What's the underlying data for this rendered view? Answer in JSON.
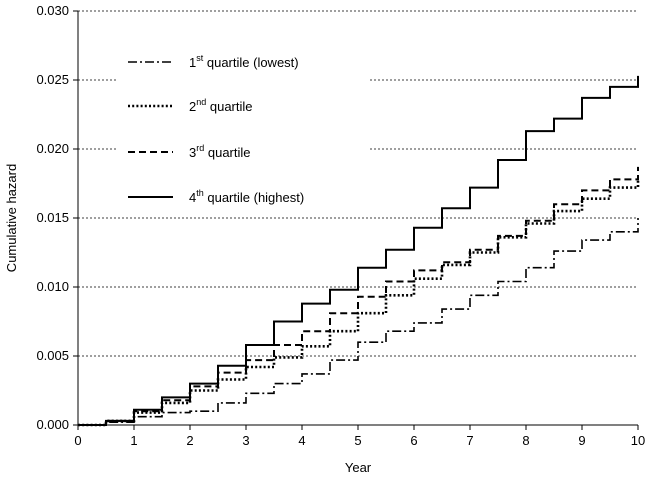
{
  "chart_data": {
    "type": "line",
    "title": "",
    "xlabel": "Year",
    "ylabel": "Cumulative hazard",
    "xlim": [
      0,
      10
    ],
    "ylim": [
      0,
      0.03
    ],
    "x_ticks": [
      "0",
      "1",
      "2",
      "3",
      "4",
      "5",
      "6",
      "7",
      "8",
      "9",
      "10"
    ],
    "y_ticks": [
      "0.000",
      "0.005",
      "0.010",
      "0.015",
      "0.020",
      "0.025",
      "0.030"
    ],
    "grid": "horizontal dashed",
    "legend_position": "top-left",
    "series": [
      {
        "name": "1st quartile (lowest)",
        "ordinal_num": "1",
        "ordinal_suffix": "st",
        "rest": " quartile (lowest)",
        "style": "dash-dot",
        "x": [
          0,
          0.5,
          1.0,
          1.5,
          2.0,
          2.5,
          3.0,
          3.5,
          4.0,
          4.5,
          5.0,
          5.5,
          6.0,
          6.5,
          7.0,
          7.5,
          8.0,
          8.5,
          9.0,
          9.5,
          10.0
        ],
        "y": [
          0,
          0.0002,
          0.0006,
          0.0009,
          0.001,
          0.0016,
          0.0023,
          0.003,
          0.0037,
          0.0047,
          0.006,
          0.0068,
          0.0074,
          0.0084,
          0.0094,
          0.0104,
          0.0114,
          0.0126,
          0.0134,
          0.014,
          0.015
        ]
      },
      {
        "name": "2nd quartile",
        "ordinal_num": "2",
        "ordinal_suffix": "nd",
        "rest": " quartile",
        "style": "dotted",
        "x": [
          0,
          0.5,
          1.0,
          1.5,
          2.0,
          2.5,
          3.0,
          3.5,
          4.0,
          4.5,
          5.0,
          5.5,
          6.0,
          6.5,
          7.0,
          7.5,
          8.0,
          8.5,
          9.0,
          9.5,
          10.0
        ],
        "y": [
          0,
          0.0003,
          0.0009,
          0.0016,
          0.0025,
          0.0033,
          0.0042,
          0.0049,
          0.0057,
          0.0068,
          0.0081,
          0.0094,
          0.0106,
          0.0116,
          0.0125,
          0.0136,
          0.0146,
          0.0155,
          0.0164,
          0.0172,
          0.0178
        ]
      },
      {
        "name": "3rd quartile",
        "ordinal_num": "3",
        "ordinal_suffix": "rd",
        "rest": " quartile",
        "style": "dashed",
        "x": [
          0,
          0.5,
          1.0,
          1.5,
          2.0,
          2.5,
          3.0,
          3.5,
          4.0,
          4.5,
          5.0,
          5.5,
          6.0,
          6.5,
          7.0,
          7.5,
          8.0,
          8.5,
          9.0,
          9.5,
          10.0
        ],
        "y": [
          0,
          0.0003,
          0.001,
          0.0018,
          0.0028,
          0.0038,
          0.0047,
          0.0058,
          0.0068,
          0.0081,
          0.0093,
          0.0104,
          0.0112,
          0.0118,
          0.0127,
          0.0137,
          0.0148,
          0.016,
          0.017,
          0.0178,
          0.0187
        ]
      },
      {
        "name": "4th quartile (highest)",
        "ordinal_num": "4",
        "ordinal_suffix": "th",
        "rest": " quartile (highest)",
        "style": "solid",
        "x": [
          0,
          0.5,
          1.0,
          1.5,
          2.0,
          2.5,
          3.0,
          3.5,
          4.0,
          4.5,
          5.0,
          5.5,
          6.0,
          6.5,
          7.0,
          7.5,
          8.0,
          8.5,
          9.0,
          9.5,
          10.0
        ],
        "y": [
          0,
          0.0003,
          0.0011,
          0.002,
          0.003,
          0.0043,
          0.0058,
          0.0075,
          0.0088,
          0.0098,
          0.0114,
          0.0127,
          0.0143,
          0.0157,
          0.0172,
          0.0192,
          0.0213,
          0.0222,
          0.0237,
          0.0245,
          0.0253
        ]
      }
    ]
  }
}
